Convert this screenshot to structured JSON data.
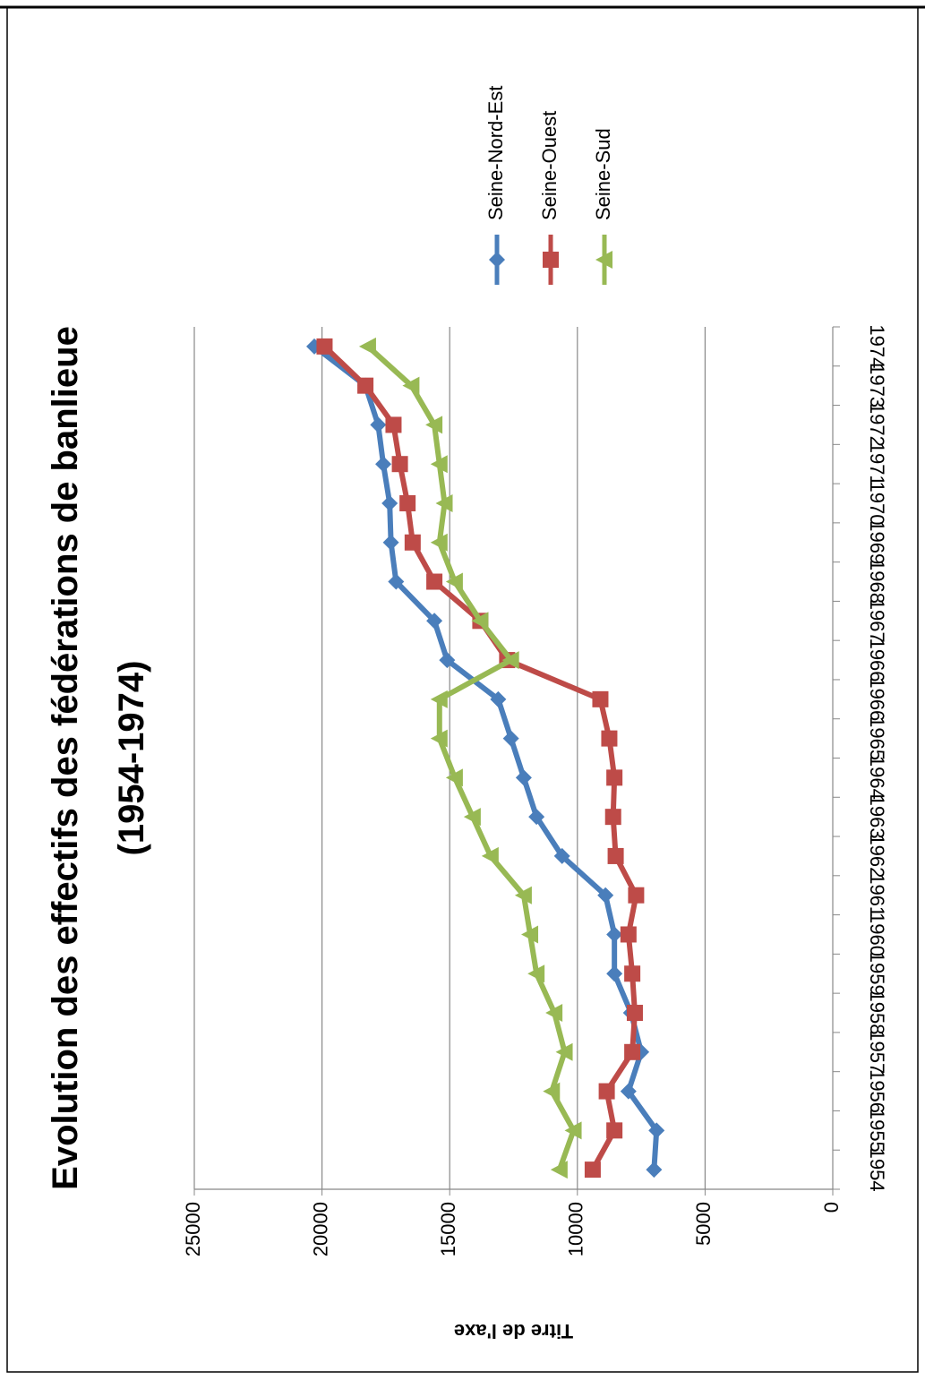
{
  "chart_data": {
    "type": "line",
    "title": "Evolution des effectifs des fédérations de banlieue (1954-1974)",
    "y_label": "Titre de l'axe",
    "categories": [
      "1954",
      "1955",
      "1956",
      "1957",
      "1958",
      "1959",
      "1960",
      "1961",
      "1962",
      "1963",
      "1964",
      "1965",
      "1966",
      "1966",
      "1967",
      "1968",
      "1969",
      "1970",
      "1971",
      "1972",
      "1973",
      "1974"
    ],
    "series": [
      {
        "name": "Seine-Nord-Est",
        "color": "#4a7ebb",
        "marker": "diamond",
        "values": [
          7000,
          6900,
          8000,
          7500,
          7900,
          8550,
          8550,
          8900,
          10600,
          11600,
          12100,
          12600,
          13100,
          15100,
          15600,
          17100,
          17300,
          17350,
          17600,
          17800,
          18300,
          20300
        ]
      },
      {
        "name": "Seine-Ouest",
        "color": "#be4b48",
        "marker": "square",
        "values": [
          9400,
          8550,
          8850,
          7850,
          7750,
          7850,
          8000,
          7700,
          8500,
          8600,
          8550,
          8750,
          9100,
          12750,
          13800,
          15600,
          16450,
          16650,
          16950,
          17200,
          18300,
          19900
        ]
      },
      {
        "name": "Seine-Sud",
        "color": "#98b954",
        "marker": "triangle",
        "values": [
          10700,
          10150,
          11000,
          10500,
          10900,
          11600,
          11850,
          12100,
          13400,
          14100,
          14800,
          15400,
          15400,
          12600,
          13800,
          14800,
          15400,
          15200,
          15400,
          15600,
          16500,
          18200
        ]
      }
    ],
    "ylim": [
      0,
      25000
    ],
    "yticks": [
      0,
      5000,
      10000,
      15000,
      20000,
      25000
    ],
    "grid": true,
    "legend": "right"
  }
}
